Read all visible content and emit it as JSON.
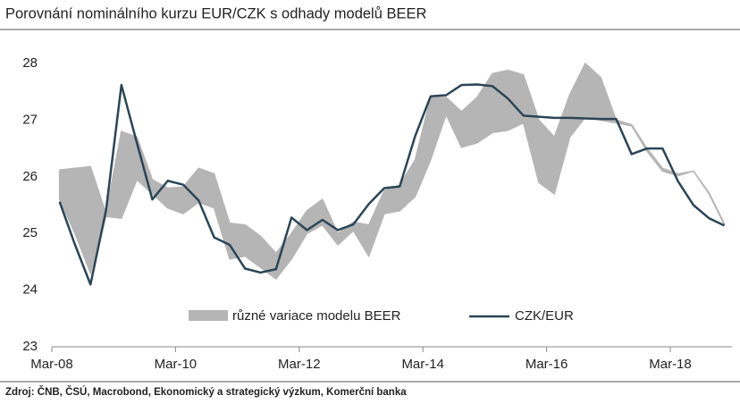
{
  "chart_data": {
    "type": "line",
    "title": "Porovnání nominálního kurzu EUR/CZK s odhady modelů BEER",
    "source": "Zdroj: ČNB, ČSÚ, Macrobond, Ekonomický a strategický výzkum, Komerční banka",
    "categories": [
      "Mar-08",
      null,
      null,
      null,
      null,
      null,
      null,
      null,
      "Mar-10",
      null,
      null,
      null,
      null,
      null,
      null,
      null,
      "Mar-12",
      null,
      null,
      null,
      null,
      null,
      null,
      null,
      "Mar-14",
      null,
      null,
      null,
      null,
      null,
      null,
      null,
      "Mar-16",
      null,
      null,
      null,
      null,
      null,
      null,
      null,
      "Mar-18",
      null,
      null,
      null
    ],
    "band": {
      "name": "různé variace modelu BEER",
      "color": "#b5b5b5",
      "low": [
        25.6,
        25.0,
        24.3,
        25.3,
        25.27,
        25.95,
        25.7,
        25.45,
        25.35,
        25.55,
        25.45,
        24.55,
        24.6,
        24.4,
        24.2,
        24.55,
        25.0,
        25.15,
        24.8,
        25.05,
        24.6,
        25.35,
        25.4,
        25.65,
        26.3,
        27.1,
        26.52,
        26.6,
        26.78,
        26.82,
        26.95,
        25.9,
        25.7,
        26.7,
        27.05,
        27.0,
        26.95,
        26.9,
        26.45,
        26.1,
        26.02,
        26.1,
        25.7,
        25.15
      ],
      "high": [
        26.12,
        26.15,
        26.18,
        25.35,
        26.8,
        26.7,
        25.95,
        25.8,
        25.82,
        26.15,
        26.05,
        25.18,
        25.15,
        24.95,
        24.65,
        25.0,
        25.4,
        25.6,
        25.0,
        25.2,
        25.15,
        25.75,
        25.85,
        26.3,
        27.4,
        27.4,
        27.15,
        27.4,
        27.82,
        27.88,
        27.8,
        27.0,
        26.7,
        27.45,
        28.0,
        27.75,
        27.0,
        26.92,
        26.5,
        26.15,
        26.05,
        26.1,
        25.72,
        25.17
      ]
    },
    "series": [
      {
        "name": "CZK/EUR",
        "color": "#2b4557",
        "values": [
          25.56,
          24.8,
          24.1,
          25.4,
          27.62,
          26.6,
          25.6,
          25.93,
          25.86,
          25.58,
          24.93,
          24.8,
          24.38,
          24.31,
          24.37,
          25.28,
          25.06,
          25.24,
          25.06,
          25.16,
          25.52,
          25.8,
          25.83,
          26.72,
          27.42,
          27.44,
          27.62,
          27.63,
          27.6,
          27.38,
          27.08,
          27.06,
          27.04,
          27.04,
          27.03,
          27.02,
          27.02,
          26.4,
          26.5,
          26.5,
          25.92,
          25.5,
          25.27,
          25.14
        ]
      }
    ],
    "ylim": [
      23,
      28
    ],
    "yticks": [
      23,
      24,
      25,
      26,
      27,
      28
    ],
    "grid": false
  }
}
